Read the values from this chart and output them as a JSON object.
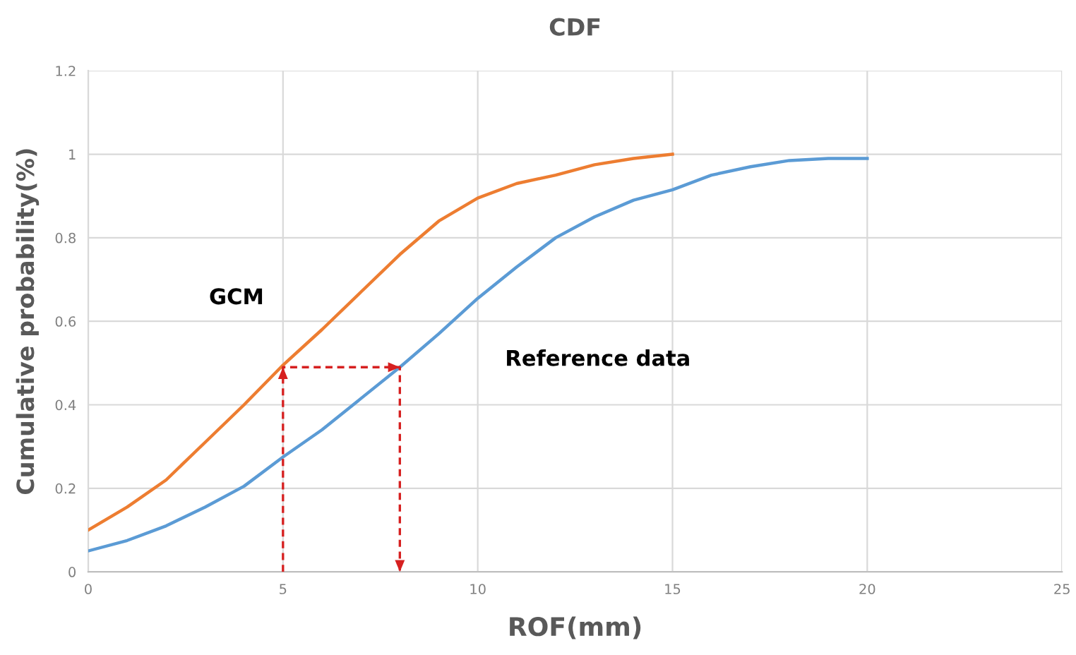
{
  "chart_data": {
    "type": "line",
    "title": "CDF",
    "xlabel": "ROF(mm)",
    "ylabel": "Cumulative probability(%)",
    "xlim": [
      0,
      25
    ],
    "xticks": [
      0,
      5,
      10,
      15,
      20,
      25
    ],
    "ylim": [
      0,
      1.2
    ],
    "yticks": [
      0,
      0.2,
      0.4,
      0.6,
      0.8,
      1,
      1.2
    ],
    "grid": true,
    "marker": "none",
    "series": [
      {
        "color": "#ed7d31",
        "x": [
          0,
          1,
          2,
          3,
          4,
          5,
          6,
          7,
          8,
          9,
          10,
          11,
          12,
          13,
          14,
          15
        ],
        "values": [
          0.1,
          0.155,
          0.22,
          0.31,
          0.4,
          0.495,
          0.58,
          0.67,
          0.76,
          0.84,
          0.895,
          0.93,
          0.95,
          0.975,
          0.99,
          1.0
        ]
      },
      {
        "color": "#5b9bd5",
        "x": [
          0,
          1,
          2,
          3,
          4,
          5,
          6,
          7,
          8,
          9,
          10,
          11,
          12,
          13,
          14,
          15,
          16,
          17,
          18,
          19,
          20
        ],
        "values": [
          0.05,
          0.075,
          0.11,
          0.155,
          0.205,
          0.275,
          0.34,
          0.415,
          0.49,
          0.57,
          0.655,
          0.73,
          0.8,
          0.85,
          0.89,
          0.915,
          0.95,
          0.97,
          0.985,
          0.99,
          0.99
        ]
      },
      {
        "color": "#d62020",
        "line_style": "dashed",
        "x": [
          5,
          5,
          8,
          8
        ],
        "values": [
          0,
          0.49,
          0.49,
          0
        ]
      }
    ],
    "annotations": [
      "GCM",
      "Reference data"
    ]
  }
}
